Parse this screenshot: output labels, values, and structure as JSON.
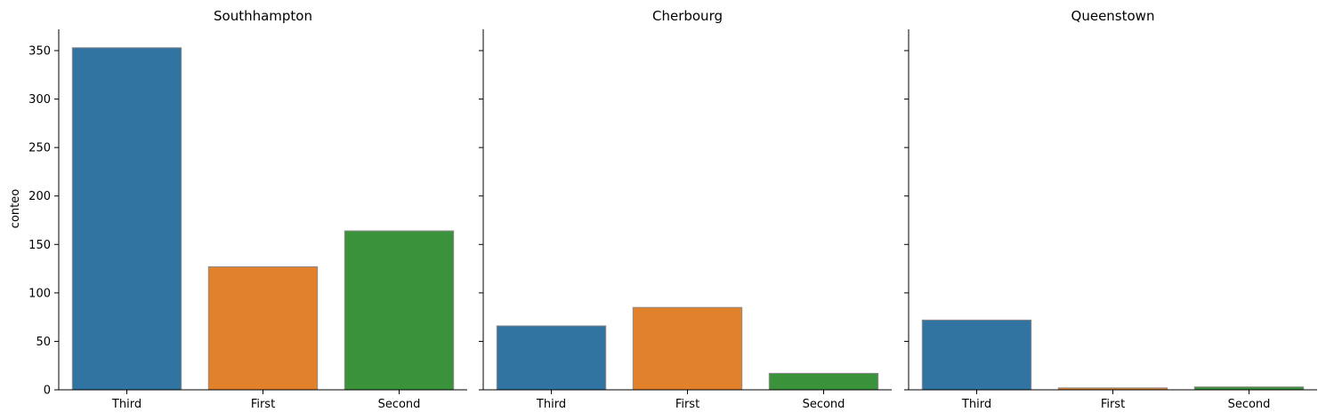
{
  "chart_data": {
    "type": "bar",
    "ylabel": "conteo",
    "ylim": [
      0,
      372
    ],
    "yticks": [
      0,
      50,
      100,
      150,
      200,
      250,
      300,
      350
    ],
    "categories": [
      "Third",
      "First",
      "Second"
    ],
    "colors": [
      "#3274a1",
      "#e1812c",
      "#3a923a"
    ],
    "panels": [
      {
        "title": "Southhampton",
        "values": [
          353,
          127,
          164
        ]
      },
      {
        "title": "Cherbourg",
        "values": [
          66,
          85,
          17
        ]
      },
      {
        "title": "Queenstown",
        "values": [
          72,
          2,
          3
        ]
      }
    ]
  }
}
